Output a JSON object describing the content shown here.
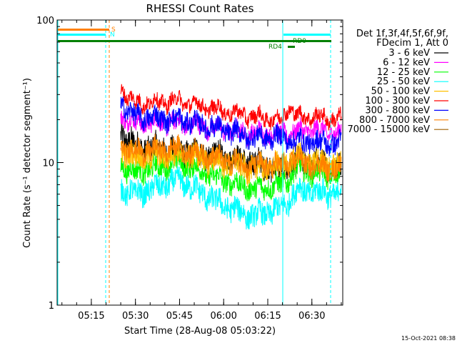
{
  "chart_data": {
    "type": "line",
    "title": "RHESSI Count Rates",
    "xlabel": "Start Time (28-Aug-08 05:03:22)",
    "ylabel": "Count Rate (s⁻¹ detector segment⁻¹)",
    "y_scale": "log",
    "ylim": [
      1,
      100
    ],
    "xlim": [
      "05:03:22",
      "06:40:30"
    ],
    "x_tick_labels": [
      "05:15",
      "05:30",
      "05:45",
      "06:00",
      "06:15",
      "06:30"
    ],
    "y_tick_labels": [
      "1",
      "10",
      "100"
    ],
    "timestamp": "15-Oct-2021 08:38",
    "legend": {
      "header": [
        "Det 1f,3f,4f,5f,6f,9f,",
        "FDecim 1, Att 0"
      ],
      "placement": "right"
    },
    "series": [
      {
        "name": "3 - 6 keV",
        "color": "#000000",
        "x": [
          "05:25",
          "05:30",
          "05:45",
          "06:00",
          "06:10",
          "06:20",
          "06:25",
          "06:30",
          "06:40"
        ],
        "values": [
          16,
          13,
          12,
          11,
          10,
          9,
          10,
          10,
          9
        ]
      },
      {
        "name": "6 - 12 keV",
        "color": "#ff00ff",
        "x": [
          "05:25",
          "05:30",
          "05:45",
          "06:00",
          "06:10",
          "06:20",
          "06:25",
          "06:30",
          "06:40"
        ],
        "values": [
          21,
          19,
          19,
          17,
          16,
          16,
          16.5,
          17,
          16
        ]
      },
      {
        "name": "12 - 25 keV",
        "color": "#00ff00",
        "x": [
          "05:25",
          "05:30",
          "05:45",
          "06:00",
          "06:10",
          "06:20",
          "06:25",
          "06:30",
          "06:40"
        ],
        "values": [
          9.5,
          8.5,
          10,
          7.5,
          6.5,
          7,
          9,
          8.5,
          8
        ]
      },
      {
        "name": "25 - 50 keV",
        "color": "#00ffff",
        "x": [
          "05:25",
          "05:30",
          "05:45",
          "06:00",
          "06:10",
          "06:20",
          "06:25",
          "06:30",
          "06:40"
        ],
        "values": [
          6.5,
          6,
          7.5,
          5,
          4.2,
          4.8,
          6.5,
          6.2,
          6
        ]
      },
      {
        "name": "50 - 100 keV",
        "color": "#ffc000",
        "x": [
          "05:25",
          "05:30",
          "05:45",
          "06:00",
          "06:10",
          "06:20",
          "06:25",
          "06:30",
          "06:40"
        ],
        "values": [
          12,
          11,
          11.5,
          10,
          9,
          9.5,
          11,
          10,
          9.5
        ]
      },
      {
        "name": "100 - 300 keV",
        "color": "#ff0000",
        "x": [
          "05:25",
          "05:30",
          "05:45",
          "06:00",
          "06:10",
          "06:20",
          "06:22",
          "06:25",
          "06:30",
          "06:40"
        ],
        "values": [
          33,
          26,
          27,
          23,
          21,
          20,
          25,
          21,
          21,
          20
        ]
      },
      {
        "name": "300 - 800 keV",
        "color": "#0000ff",
        "x": [
          "05:25",
          "05:30",
          "05:45",
          "06:00",
          "06:10",
          "06:20",
          "06:25",
          "06:30",
          "06:40"
        ],
        "values": [
          26,
          21,
          20,
          17,
          15,
          15,
          14,
          14,
          13.5
        ]
      },
      {
        "name": "800 - 7000 keV",
        "color": "#ff8000",
        "x": [
          "05:25",
          "05:30",
          "05:45",
          "06:00",
          "06:10",
          "06:20",
          "06:25",
          "06:30",
          "06:40"
        ],
        "values": [
          13,
          12,
          12.5,
          10.5,
          9.5,
          9.5,
          10.5,
          9.5,
          9
        ]
      },
      {
        "name": "7000 - 15000 keV",
        "color": "#a06000",
        "x": [
          "05:25",
          "05:30",
          "05:45",
          "06:00",
          "06:10",
          "06:20",
          "06:25",
          "06:30",
          "06:40"
        ],
        "values": [
          null,
          null,
          null,
          null,
          null,
          null,
          null,
          null,
          null
        ]
      }
    ],
    "flags": [
      {
        "label": "S",
        "color": "#ff8000"
      },
      {
        "label": "N",
        "color": "#00ffff"
      },
      {
        "label": "RD0",
        "color": "#008000"
      },
      {
        "label": "RD4",
        "color": "#008000"
      }
    ]
  }
}
